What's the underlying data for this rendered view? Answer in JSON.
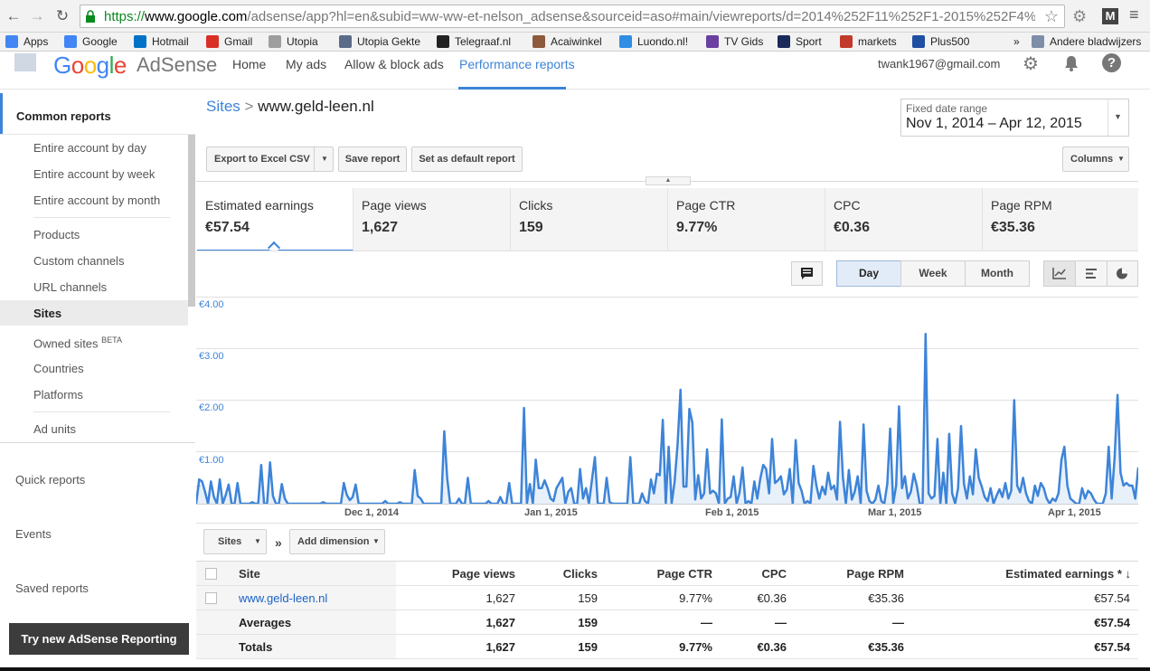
{
  "browser": {
    "url_scheme": "https://",
    "url_host": "www.google.com",
    "url_path": "/adsense/app?hl=en&subid=ww-ww-et-nelson_adsense&sourceid=aso#main/viewreports/d=2014%252F11%252F1-2015%252F4%25..."
  },
  "bookmarks": [
    {
      "label": "Apps",
      "color": "#4285f4"
    },
    {
      "label": "Google",
      "color": "#4285f4"
    },
    {
      "label": "Hotmail",
      "color": "#0072c6"
    },
    {
      "label": "Gmail",
      "color": "#d93025"
    },
    {
      "label": "Utopia",
      "color": "#9e9e9e"
    },
    {
      "label": "Utopia Gekte",
      "color": "#5b6b8a"
    },
    {
      "label": "Telegraaf.nl",
      "color": "#222222"
    },
    {
      "label": "Acaiwinkel",
      "color": "#8d5a3c"
    },
    {
      "label": "Luondo.nl!",
      "color": "#2f8de4"
    },
    {
      "label": "TV Gids",
      "color": "#6a3fa0"
    },
    {
      "label": "Sport",
      "color": "#1a2a5a"
    },
    {
      "label": "markets",
      "color": "#c0392b"
    },
    {
      "label": "Plus500",
      "color": "#1e4fa3"
    },
    {
      "label": "»",
      "color": ""
    },
    {
      "label": "Andere bladwijzers",
      "color": "#7e8ea8"
    }
  ],
  "header": {
    "logo_google": "Google",
    "logo_adsense": "AdSense",
    "nav": [
      "Home",
      "My ads",
      "Allow & block ads",
      "Performance reports"
    ],
    "account": "twank1967@gmail.com"
  },
  "sidebar": {
    "common_reports": "Common reports",
    "items": [
      "Entire account by day",
      "Entire account by week",
      "Entire account by month",
      "Products",
      "Custom channels",
      "URL channels",
      "Sites",
      "Owned sites",
      "Countries",
      "Platforms",
      "Ad units"
    ],
    "owned_sites_badge": "BETA",
    "lower": [
      "Quick reports",
      "Events",
      "Saved reports"
    ],
    "try_new": "Try new AdSense Reporting"
  },
  "breadcrumb": {
    "root": "Sites",
    "sep": ">",
    "current": "www.geld-leen.nl"
  },
  "date_range": {
    "label": "Fixed date range",
    "value": "Nov 1, 2014 – Apr 12, 2015"
  },
  "toolbar": {
    "export": "Export to Excel CSV",
    "save": "Save report",
    "default": "Set as default report",
    "columns": "Columns"
  },
  "metrics": [
    {
      "label": "Estimated earnings",
      "value": "€57.54"
    },
    {
      "label": "Page views",
      "value": "1,627"
    },
    {
      "label": "Clicks",
      "value": "159"
    },
    {
      "label": "Page CTR",
      "value": "9.77%"
    },
    {
      "label": "CPC",
      "value": "€0.36"
    },
    {
      "label": "Page RPM",
      "value": "€35.36"
    }
  ],
  "granularity": [
    "Day",
    "Week",
    "Month"
  ],
  "chart_data": {
    "type": "area",
    "title": "",
    "y_ticks": [
      "€4.00",
      "€3.00",
      "€2.00",
      "€1.00"
    ],
    "x_ticks": [
      "Dec 1, 2014",
      "Jan 1, 2015",
      "Feb 1, 2015",
      "Mar 1, 2015",
      "Apr 1, 2015"
    ],
    "ylim": [
      0,
      4
    ],
    "x_start": "2014-11-01",
    "x_end": "2015-04-12",
    "values": [
      0,
      0.47,
      0.43,
      0.23,
      0,
      0.43,
      0.13,
      0,
      0.47,
      0,
      0.17,
      0.37,
      0,
      0,
      0.4,
      0,
      0,
      0,
      0,
      0.03,
      0,
      0,
      0.75,
      0,
      0,
      0.8,
      0.15,
      0,
      0,
      0.38,
      0.1,
      0,
      0,
      0,
      0,
      0,
      0,
      0,
      0,
      0,
      0,
      0,
      0,
      0.03,
      0,
      0,
      0,
      0,
      0,
      0,
      0.4,
      0.17,
      0.07,
      0.13,
      0.37,
      0,
      0,
      0,
      0,
      0,
      0,
      0,
      0,
      0,
      0.05,
      0,
      0,
      0,
      0,
      0.03,
      0,
      0,
      0,
      0,
      0.65,
      0.15,
      0.1,
      0,
      0,
      0,
      0,
      0,
      0,
      0,
      1.4,
      0.5,
      0,
      0,
      0,
      0.1,
      0,
      0,
      0.5,
      0,
      0,
      0,
      0,
      0,
      0,
      0.05,
      0,
      0,
      0,
      0.13,
      0,
      0,
      0.4,
      0,
      0,
      0,
      0,
      1.85,
      0,
      0.38,
      0,
      0.85,
      0.3,
      0.3,
      0.45,
      0.3,
      0.1,
      0.05,
      0.3,
      0.4,
      0.5,
      0,
      0.23,
      0.3,
      0,
      0,
      0.67,
      0.1,
      0.3,
      0,
      0.45,
      0.9,
      0,
      0,
      0,
      0.5,
      0.03,
      0,
      0,
      0,
      0,
      0,
      0,
      0.9,
      0,
      0,
      0,
      0.2,
      0.05,
      0,
      0.47,
      0.2,
      0.58,
      0.55,
      1.62,
      0,
      1.1,
      0,
      0.43,
      1.13,
      2.2,
      0.33,
      0.33,
      1.83,
      1.57,
      0.08,
      0.55,
      0.1,
      0.2,
      1.05,
      0.2,
      0.25,
      0.2,
      0,
      1.63,
      0,
      0.1,
      0.13,
      0.53,
      0,
      0.22,
      0.7,
      0,
      0.05,
      0,
      0.43,
      0.1,
      0.48,
      0.75,
      0.67,
      0.2,
      1.25,
      0.4,
      0.45,
      0.53,
      0.18,
      0.27,
      0.67,
      0,
      1.23,
      0.4,
      0.25,
      0,
      0.05,
      0,
      0.73,
      0.35,
      0.1,
      0.33,
      0.18,
      0.6,
      0.28,
      0.35,
      0.08,
      1.58,
      0.5,
      0,
      0.65,
      0.08,
      0.23,
      0.53,
      0,
      1.53,
      0.25,
      0.05,
      0,
      0.08,
      0.35,
      0.05,
      0,
      0.38,
      1.45,
      0,
      0.35,
      1.88,
      0.3,
      0.53,
      0.1,
      0.23,
      0.58,
      0.35,
      0,
      0,
      3.28,
      0.2,
      0.1,
      0.15,
      1.25,
      0,
      0.6,
      0,
      1.35,
      0.2,
      0,
      0.3,
      1.5,
      0.38,
      0.1,
      0.53,
      0.18,
      1.05,
      0.5,
      0.33,
      0.13,
      0.05,
      0.3,
      0,
      0.15,
      0.28,
      0.13,
      0.4,
      0.1,
      0.25,
      2.0,
      0.35,
      0.22,
      0.5,
      0.2,
      0.05,
      0,
      0.35,
      0.15,
      0.4,
      0.3,
      0.1,
      0,
      0.1,
      0.05,
      0.2,
      0.85,
      1.1,
      0.35,
      0.1,
      0.05,
      0,
      0,
      0.3,
      0.1,
      0.25,
      0.2,
      0.08,
      0,
      0,
      0,
      0.2,
      1.1,
      0.1,
      0.9,
      2.1,
      0.6,
      0.35,
      0.4,
      0.35,
      0.35,
      0.1,
      0.7
    ]
  },
  "dimension": {
    "selected": "Sites",
    "add": "Add dimension"
  },
  "table": {
    "headers": [
      "Site",
      "Page views",
      "Clicks",
      "Page CTR",
      "CPC",
      "Page RPM",
      "Estimated earnings * ↓"
    ],
    "rows": [
      [
        "www.geld-leen.nl",
        "1,627",
        "159",
        "9.77%",
        "€0.36",
        "€35.36",
        "€57.54"
      ],
      [
        "Averages",
        "1,627",
        "159",
        "—",
        "—",
        "—",
        "€57.54"
      ],
      [
        "Totals",
        "1,627",
        "159",
        "9.77%",
        "€0.36",
        "€35.36",
        "€57.54"
      ]
    ]
  }
}
